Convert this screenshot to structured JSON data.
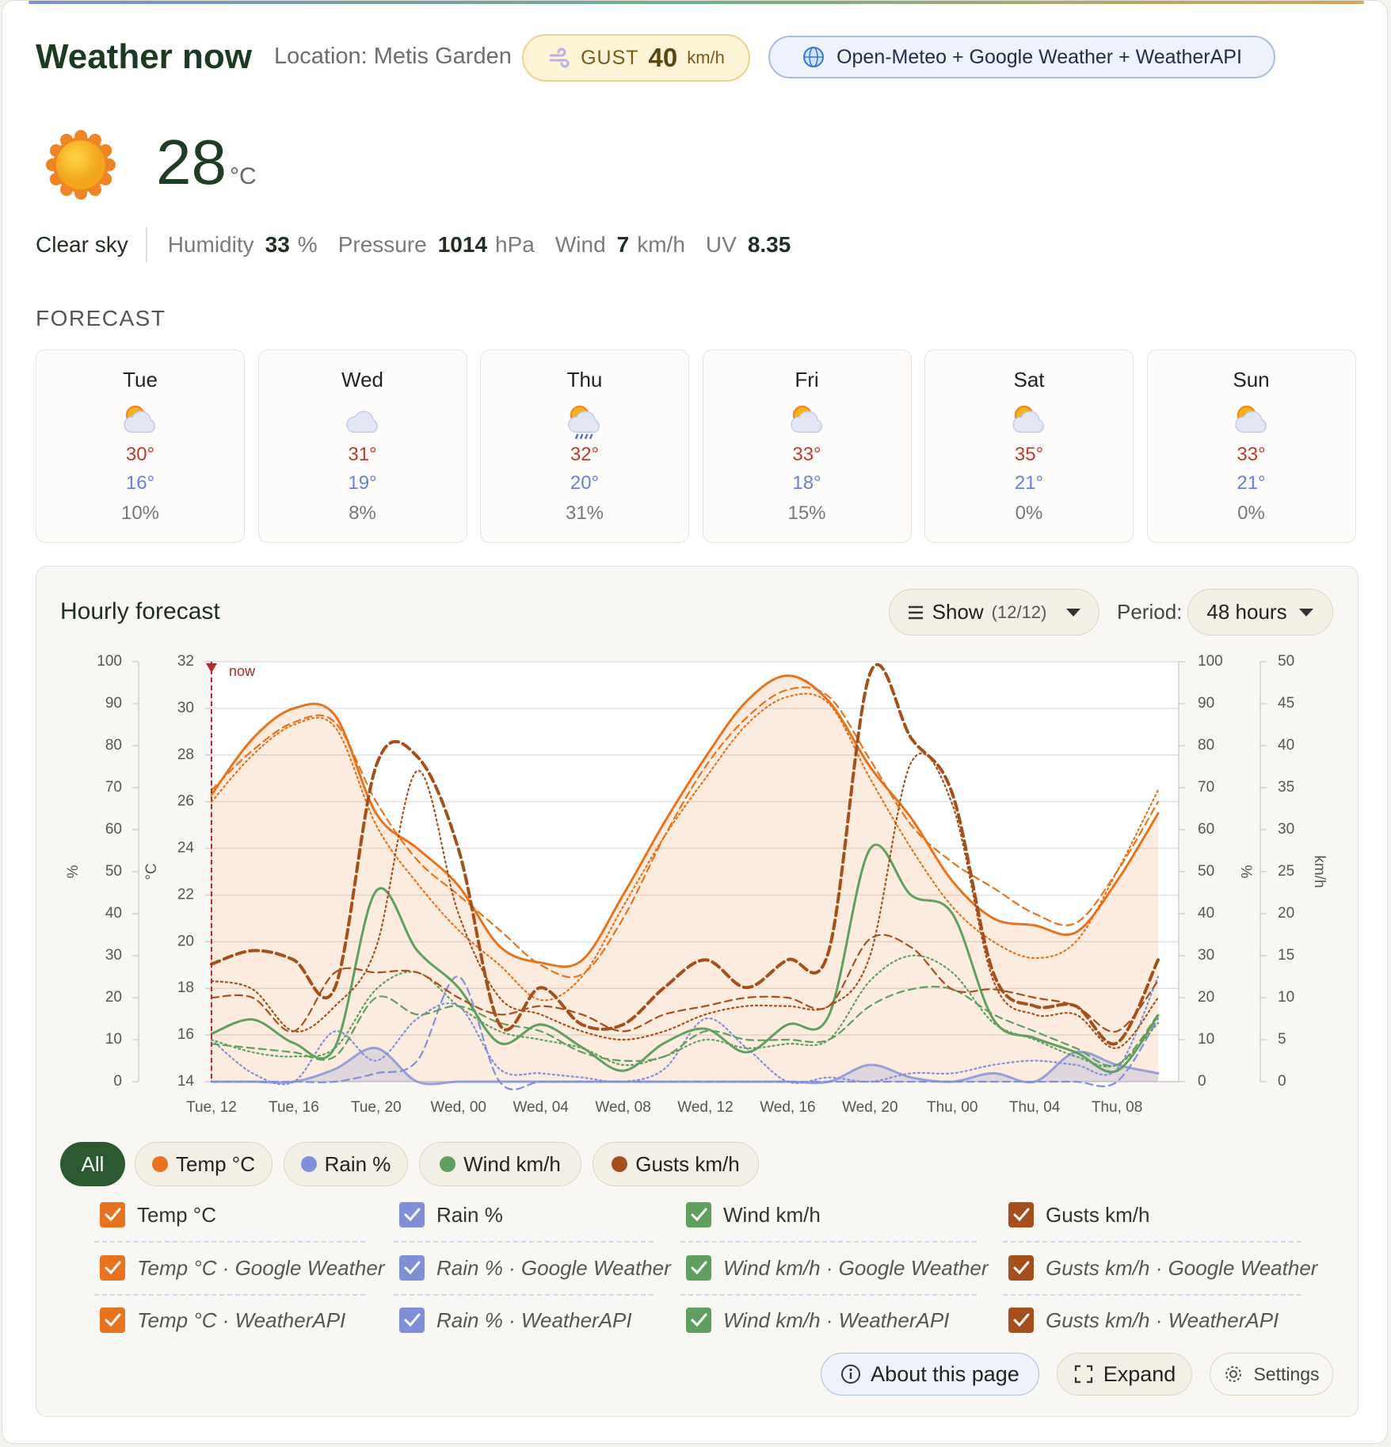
{
  "header": {
    "title": "Weather now",
    "location": "Location: Metis Garden",
    "gust_label": "GUST",
    "gust_value": "40",
    "gust_unit": "km/h",
    "sources": "Open-Meteo + Google Weather + WeatherAPI"
  },
  "current": {
    "temperature": "28",
    "unit": "°C",
    "condition": "Clear sky",
    "metrics": [
      {
        "label": "Humidity",
        "value": "33",
        "unit": "%"
      },
      {
        "label": "Pressure",
        "value": "1014",
        "unit": "hPa"
      },
      {
        "label": "Wind",
        "value": "7",
        "unit": "km/h"
      },
      {
        "label": "UV",
        "value": "8.35"
      }
    ]
  },
  "forecast": {
    "title": "FORECAST",
    "days": [
      {
        "day": "Tue",
        "high": "30°",
        "low": "16°",
        "rain": "10%"
      },
      {
        "day": "Wed",
        "high": "31°",
        "low": "19°",
        "rain": "8%"
      },
      {
        "day": "Thu",
        "high": "32°",
        "low": "20°",
        "rain": "31%"
      },
      {
        "day": "Fri",
        "high": "33°",
        "low": "18°",
        "rain": "15%"
      },
      {
        "day": "Sat",
        "high": "35°",
        "low": "21°",
        "rain": "0%"
      },
      {
        "day": "Sun",
        "high": "33°",
        "low": "21°",
        "rain": "0%"
      }
    ]
  },
  "hourly": {
    "title": "Hourly forecast",
    "show": "Show",
    "show_count": "(12/12)",
    "period_label": "Period:",
    "period": "48 hours",
    "filters": [
      "All",
      "Temp °C",
      "Rain %",
      "Wind km/h",
      "Gusts km/h"
    ],
    "buttons": [
      "About this page",
      "Expand",
      "Settings"
    ]
  },
  "chart_data": {
    "type": "line",
    "categories": [
      "Tue, 12",
      null,
      "Tue, 16",
      null,
      "Tue, 20",
      null,
      "Wed, 00",
      null,
      "Wed, 04",
      null,
      "Wed, 08",
      null,
      "Wed, 12",
      null,
      "Wed, 16",
      null,
      "Wed, 20",
      null,
      "Thu, 00",
      null,
      "Thu, 04",
      null,
      "Thu, 08",
      null
    ],
    "axes": [
      {
        "label": "%",
        "lim": [
          0,
          100
        ],
        "ticks": [
          0,
          10,
          20,
          30,
          40,
          50,
          60,
          70,
          80,
          90,
          100
        ],
        "side": "left"
      },
      {
        "label": "°C",
        "lim": [
          14,
          32
        ],
        "ticks": [
          14,
          16,
          18,
          20,
          22,
          24,
          26,
          28,
          30,
          32
        ],
        "side": "left",
        "grid": true
      },
      {
        "label": "%",
        "lim": [
          0,
          100
        ],
        "ticks": [
          0,
          10,
          20,
          30,
          40,
          50,
          60,
          70,
          80,
          90,
          100
        ],
        "side": "right"
      },
      {
        "label": "km/h",
        "lim": [
          0,
          50
        ],
        "ticks": [
          0,
          5,
          10,
          15,
          20,
          25,
          30,
          35,
          40,
          45,
          50
        ],
        "side": "right"
      }
    ],
    "annotations": [
      {
        "text": "now",
        "at": "Tue, 12"
      }
    ],
    "series": [
      {
        "name": "Temp °C",
        "color": "#e8731e",
        "axis": 1,
        "style": "solid",
        "fill": true,
        "values": [
          26.3,
          28.7,
          30.0,
          29.7,
          25.5,
          24.0,
          22.4,
          19.8,
          19.1,
          19.2,
          22.0,
          25.1,
          27.9,
          30.3,
          31.4,
          30.3,
          27.5,
          25.3,
          22.6,
          21.0,
          20.7,
          20.4,
          22.6,
          25.5
        ]
      },
      {
        "name": "Temp °C · Google Weather",
        "color": "#e8731e",
        "axis": 1,
        "style": "dashed",
        "values": [
          26.5,
          28.2,
          29.4,
          29.4,
          26.0,
          23.5,
          22.0,
          20.5,
          19.0,
          18.6,
          21.0,
          24.5,
          27.5,
          29.6,
          30.8,
          30.5,
          27.8,
          25.0,
          23.4,
          22.3,
          21.2,
          20.8,
          23.0,
          26.0
        ]
      },
      {
        "name": "Temp °C · WeatherAPI",
        "color": "#e8731e",
        "axis": 1,
        "style": "dotted",
        "values": [
          26.0,
          28.0,
          29.3,
          29.2,
          25.0,
          22.5,
          20.5,
          19.0,
          17.5,
          18.5,
          21.5,
          24.5,
          27.0,
          29.3,
          30.5,
          30.2,
          27.0,
          24.0,
          21.5,
          20.0,
          19.3,
          20.0,
          23.0,
          26.5
        ]
      },
      {
        "name": "Rain %",
        "color": "#7f8fd8",
        "axis": 0,
        "style": "solid",
        "fill": true,
        "values": [
          0,
          0,
          0,
          3,
          8,
          0,
          0,
          0,
          0,
          0,
          0,
          0,
          0,
          0,
          0,
          0,
          4,
          1,
          0,
          2,
          0,
          7,
          4,
          2
        ]
      },
      {
        "name": "Rain % · Google Weather",
        "color": "#7f8fd8",
        "axis": 0,
        "style": "dashed",
        "values": [
          0,
          0,
          0,
          0,
          2,
          5,
          25,
          0,
          0,
          0,
          0,
          0,
          0,
          0,
          0,
          0,
          0,
          0,
          0,
          0,
          0,
          0,
          0,
          15
        ]
      },
      {
        "name": "Rain % · WeatherAPI",
        "color": "#7f8fd8",
        "axis": 0,
        "style": "dotted",
        "values": [
          10,
          2,
          0,
          12,
          5,
          15,
          18,
          3,
          2,
          1,
          0,
          3,
          15,
          8,
          0,
          1,
          0,
          2,
          2,
          4,
          5,
          4,
          3,
          25
        ]
      },
      {
        "name": "Wind km/h",
        "color": "#5fa05f",
        "axis": 3,
        "style": "solid",
        "values": [
          5.7,
          7.4,
          4.6,
          4.1,
          22.7,
          15.6,
          11.2,
          4.6,
          6.8,
          4.1,
          1.3,
          4.6,
          6.3,
          3.5,
          6.8,
          7.9,
          27.7,
          22.2,
          20.0,
          7.4,
          5.2,
          3.5,
          1.3,
          7.9
        ]
      },
      {
        "name": "Wind km/h · Google Weather",
        "color": "#5fa05f",
        "axis": 3,
        "style": "dashed",
        "values": [
          4.5,
          4,
          3.5,
          3,
          10,
          8,
          9,
          7,
          6,
          3.5,
          2.5,
          3,
          6,
          5,
          5,
          5,
          9,
          11,
          11,
          8,
          6,
          4,
          2,
          8
        ]
      },
      {
        "name": "Wind km/h · WeatherAPI",
        "color": "#5fa05f",
        "axis": 3,
        "style": "dotted",
        "values": [
          5,
          3.5,
          3,
          4,
          11,
          13,
          9,
          6,
          5,
          4,
          2,
          3,
          5,
          4,
          4.5,
          5,
          12,
          15,
          13,
          7,
          5,
          3,
          2,
          7
        ]
      },
      {
        "name": "Gusts km/h",
        "color": "#a5501c",
        "axis": 3,
        "style": "thick-dashed",
        "values": [
          14,
          15.6,
          14.5,
          11.2,
          37.6,
          38.7,
          27.7,
          6.8,
          11.2,
          6.8,
          6.8,
          11.2,
          14.5,
          11.2,
          14.5,
          15.6,
          48.6,
          40.9,
          34.3,
          12.9,
          9,
          9,
          4.6,
          14.5
        ]
      },
      {
        "name": "Gusts km/h · Google Weather",
        "color": "#a5501c",
        "axis": 3,
        "style": "dashed",
        "values": [
          10,
          10,
          6,
          13,
          13,
          13,
          10,
          8,
          9,
          8,
          6,
          8,
          9,
          10,
          10,
          9,
          17,
          16,
          11,
          11,
          10,
          9,
          6,
          12
        ]
      },
      {
        "name": "Gusts km/h · WeatherAPI",
        "color": "#a5501c",
        "axis": 3,
        "style": "dotted",
        "values": [
          12,
          11,
          6,
          9,
          16,
          37,
          20,
          10,
          8,
          6,
          5,
          6,
          8,
          9,
          9,
          9,
          15,
          38,
          33,
          12,
          8,
          8,
          4,
          10
        ]
      }
    ]
  }
}
